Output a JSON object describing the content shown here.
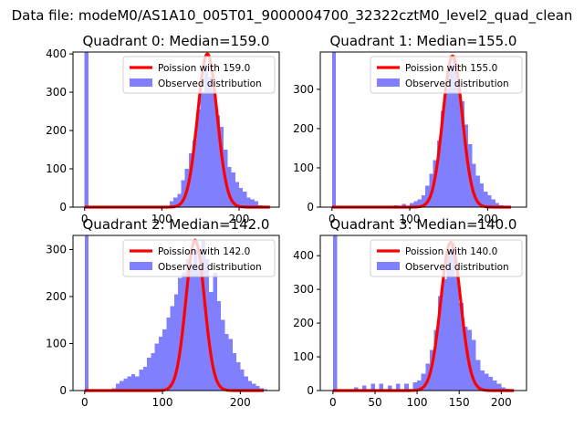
{
  "figure": {
    "suptitle": "Data file: modeM0/AS1A10_005T01_9000004700_32322cztM0_level2_quad_clean"
  },
  "colors": {
    "bars": "#8080ff",
    "fit": "#ff0000",
    "axis": "#000000",
    "background": "#ffffff"
  },
  "chart_data": [
    {
      "type": "bar",
      "title": "Quadrant 0: Median=159.0",
      "xlabel": "",
      "ylabel": "",
      "xlim": [
        -15,
        252
      ],
      "ylim": [
        0,
        405
      ],
      "xticks": [
        0,
        100,
        200
      ],
      "yticks": [
        0,
        100,
        200,
        300,
        400
      ],
      "grid": false,
      "legend": {
        "position": "upper-right",
        "entries": [
          "Poission with 159.0",
          "Observed distribution"
        ]
      },
      "bin_width": 5,
      "histogram": {
        "name": "Observed distribution",
        "bin_starts": [
          0,
          110,
          115,
          120,
          125,
          130,
          135,
          140,
          145,
          150,
          155,
          160,
          165,
          170,
          175,
          180,
          185,
          190,
          195,
          200,
          205,
          210,
          215,
          220,
          225
        ],
        "counts": [
          405,
          15,
          25,
          35,
          70,
          100,
          140,
          175,
          255,
          300,
          370,
          340,
          305,
          240,
          210,
          150,
          105,
          90,
          65,
          50,
          40,
          25,
          20,
          15,
          5
        ]
      },
      "fit": {
        "name": "Poission with 159.0",
        "mean": 159.0,
        "peak": 400,
        "x_range": [
          0,
          240
        ]
      }
    },
    {
      "type": "bar",
      "title": "Quadrant 1: Median=155.0",
      "xlabel": "",
      "ylabel": "",
      "xlim": [
        -15,
        250
      ],
      "ylim": [
        0,
        395
      ],
      "xticks": [
        0,
        100,
        200
      ],
      "yticks": [
        0,
        100,
        200,
        300
      ],
      "grid": false,
      "legend": {
        "position": "upper-right",
        "entries": [
          "Poission with 155.0",
          "Observed distribution"
        ]
      },
      "bin_width": 5,
      "histogram": {
        "name": "Observed distribution",
        "bin_starts": [
          0,
          65,
          80,
          90,
          100,
          105,
          110,
          115,
          120,
          125,
          130,
          135,
          140,
          145,
          150,
          155,
          160,
          165,
          170,
          175,
          180,
          185,
          190,
          195,
          200,
          205,
          210,
          215
        ],
        "counts": [
          395,
          3,
          5,
          8,
          10,
          15,
          20,
          30,
          55,
          85,
          120,
          170,
          245,
          300,
          350,
          380,
          320,
          270,
          210,
          160,
          110,
          80,
          60,
          40,
          30,
          20,
          10,
          5
        ]
      },
      "fit": {
        "name": "Poission with 155.0",
        "mean": 155.0,
        "peak": 385,
        "x_range": [
          0,
          230
        ]
      }
    },
    {
      "type": "bar",
      "title": "Quadrant 2: Median=142.0",
      "xlabel": "",
      "ylabel": "",
      "xlim": [
        -15,
        250
      ],
      "ylim": [
        0,
        330
      ],
      "xticks": [
        0,
        100,
        200
      ],
      "yticks": [
        0,
        100,
        200,
        300
      ],
      "grid": false,
      "legend": {
        "position": "upper-right",
        "entries": [
          "Poission with 142.0",
          "Observed distribution"
        ]
      },
      "bin_width": 5,
      "histogram": {
        "name": "Observed distribution",
        "bin_starts": [
          0,
          35,
          40,
          45,
          50,
          55,
          60,
          65,
          70,
          75,
          80,
          85,
          90,
          95,
          100,
          105,
          110,
          115,
          120,
          125,
          130,
          135,
          140,
          145,
          150,
          155,
          160,
          165,
          170,
          175,
          180,
          185,
          190,
          195,
          200,
          205,
          210,
          215,
          220,
          225,
          230
        ],
        "counts": [
          330,
          5,
          15,
          20,
          25,
          30,
          35,
          30,
          45,
          50,
          70,
          80,
          100,
          115,
          130,
          155,
          180,
          205,
          240,
          250,
          280,
          270,
          300,
          260,
          320,
          280,
          210,
          250,
          190,
          150,
          120,
          110,
          80,
          60,
          45,
          30,
          20,
          15,
          10,
          5,
          3
        ]
      },
      "fit": {
        "name": "Poission with 142.0",
        "mean": 142.0,
        "peak": 320,
        "x_range": [
          0,
          230
        ]
      }
    },
    {
      "type": "bar",
      "title": "Quadrant 3: Median=140.0",
      "xlabel": "",
      "ylabel": "",
      "xlim": [
        -15,
        230
      ],
      "ylim": [
        0,
        460
      ],
      "xticks": [
        0,
        50,
        100,
        150,
        200
      ],
      "yticks": [
        0,
        100,
        200,
        300,
        400
      ],
      "grid": false,
      "legend": {
        "position": "upper-right",
        "entries": [
          "Poission with 140.0",
          "Observed distribution"
        ]
      },
      "bin_width": 5,
      "histogram": {
        "name": "Observed distribution",
        "bin_starts": [
          0,
          25,
          35,
          45,
          55,
          65,
          75,
          85,
          95,
          100,
          105,
          110,
          115,
          120,
          125,
          130,
          135,
          140,
          145,
          150,
          155,
          160,
          165,
          170,
          175,
          180,
          185,
          190,
          195,
          200,
          205
        ],
        "counts": [
          460,
          10,
          15,
          20,
          20,
          15,
          20,
          20,
          25,
          30,
          50,
          80,
          120,
          180,
          280,
          330,
          420,
          430,
          340,
          260,
          190,
          180,
          150,
          90,
          60,
          50,
          40,
          30,
          20,
          10,
          5
        ]
      },
      "fit": {
        "name": "Poission with 140.0",
        "mean": 140.0,
        "peak": 440,
        "x_range": [
          0,
          215
        ]
      }
    }
  ]
}
